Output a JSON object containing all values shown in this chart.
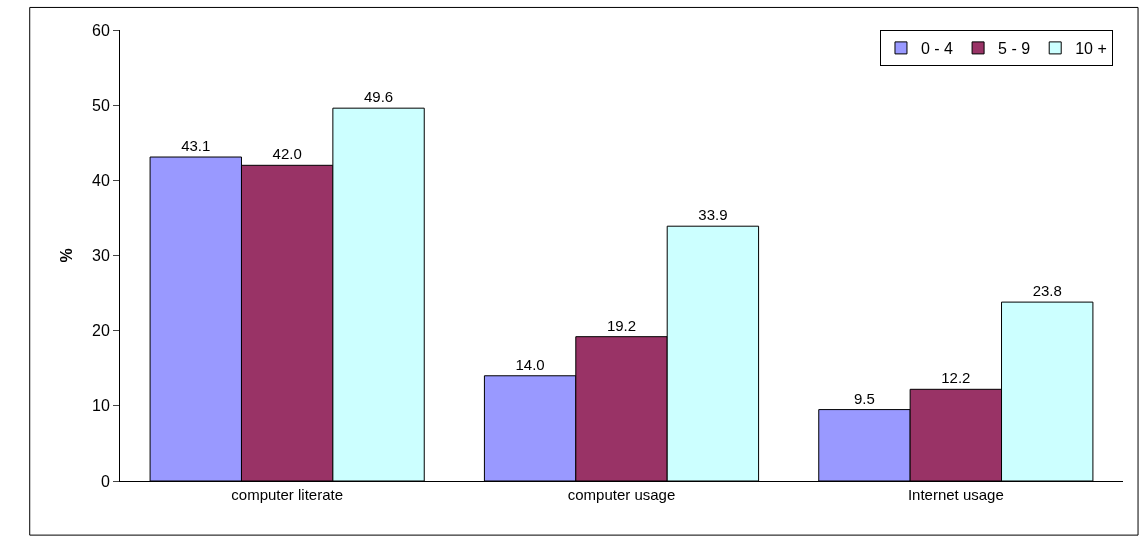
{
  "chart_data": {
    "type": "bar",
    "ylabel": "%",
    "categories": [
      "computer literate",
      "computer usage",
      "Internet usage"
    ],
    "series": [
      {
        "name": "0 - 4",
        "color": "#9999ff",
        "values": [
          43.1,
          14.0,
          9.5
        ],
        "value_labels": [
          "43.1",
          "14.0",
          "9.5"
        ]
      },
      {
        "name": "5 - 9",
        "color": "#993366",
        "values": [
          42.0,
          19.2,
          12.2
        ],
        "value_labels": [
          "42.0",
          "19.2",
          "12.2"
        ]
      },
      {
        "name": "10 +",
        "color": "#ccffff",
        "values": [
          49.6,
          33.9,
          23.8
        ],
        "value_labels": [
          "49.6",
          "33.9",
          "23.8"
        ]
      }
    ],
    "ylim": [
      0,
      60
    ],
    "yticks": [
      0,
      10,
      20,
      30,
      40,
      50,
      60
    ],
    "grid": false,
    "legend": "top right"
  }
}
